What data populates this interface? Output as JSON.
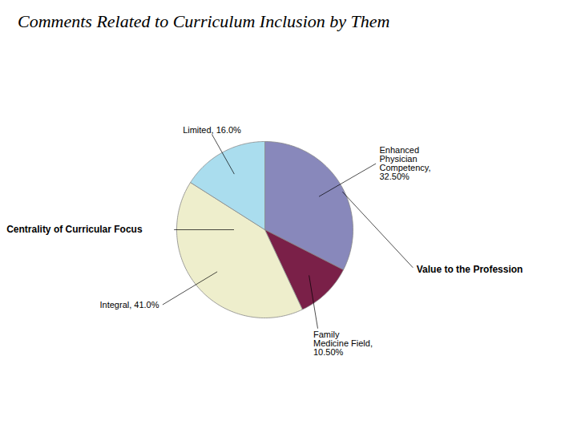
{
  "chart_data": {
    "type": "pie",
    "title": "Comments Related to Curriculum Inclusion by Them",
    "categories": [
      "Enhanced\nPhysician\nCompetency,\n32.50%",
      "Family\nMedicine Field,\n10.50%",
      "Integral, 41.0%",
      "Limited, 16.0%"
    ],
    "values": [
      32.5,
      10.5,
      41.0,
      16.0
    ],
    "colors": [
      "#8888BB",
      "#7A2048",
      "#EEEECC",
      "#AADDEE"
    ],
    "annotations": [
      "Centrality of Curricular Focus",
      "Value to the Profession"
    ]
  }
}
